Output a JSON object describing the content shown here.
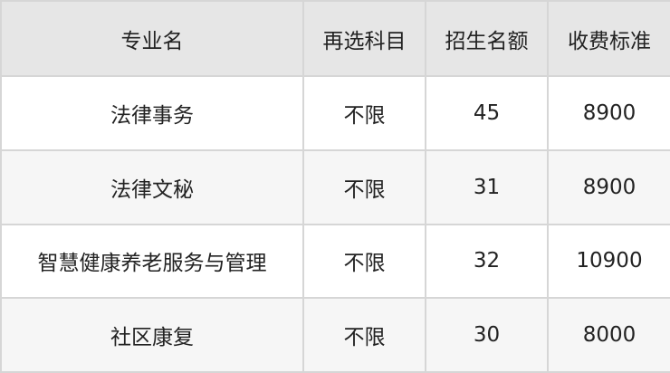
{
  "table": {
    "headers": [
      "专业名",
      "再选科目",
      "招生名额",
      "收费标准"
    ],
    "rows": [
      [
        "法律事务",
        "不限",
        "45",
        "8900"
      ],
      [
        "法律文秘",
        "不限",
        "31",
        "8900"
      ],
      [
        "智慧健康养老服务与管理",
        "不限",
        "32",
        "10900"
      ],
      [
        "社区康复",
        "不限",
        "30",
        "8000"
      ]
    ]
  },
  "colors": {
    "header_bg": "#e6e6e6",
    "alt_row_bg": "#f6f6f6",
    "border": "#d6d6d6"
  }
}
